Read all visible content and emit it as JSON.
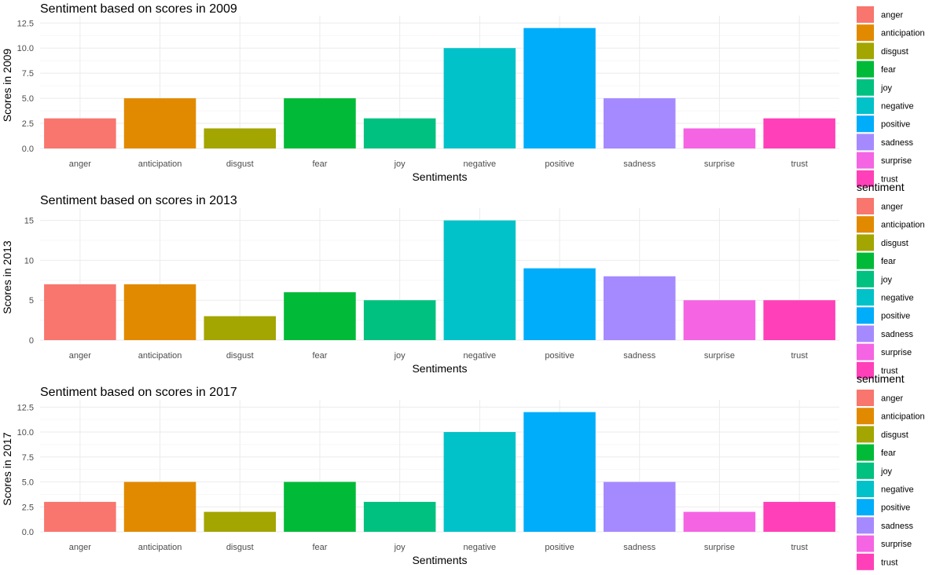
{
  "chart_data": [
    {
      "type": "bar",
      "title": "Sentiment based on scores in 2009",
      "xlabel": "Sentiments",
      "ylabel": "Scores in 2009",
      "categories": [
        "anger",
        "anticipation",
        "disgust",
        "fear",
        "joy",
        "negative",
        "positive",
        "sadness",
        "surprise",
        "trust"
      ],
      "values": [
        3,
        5,
        2,
        5,
        3,
        10,
        12,
        5,
        2,
        3
      ],
      "ylim": [
        0,
        12.6
      ],
      "yticks": [
        "0.0",
        "2.5",
        "5.0",
        "7.5",
        "10.0",
        "12.5"
      ],
      "grid": true,
      "legend": {
        "position": "right",
        "title": "",
        "entries": [
          "anger",
          "anticipation",
          "disgust",
          "fear",
          "joy",
          "negative",
          "positive",
          "sadness",
          "surprise",
          "trust"
        ]
      }
    },
    {
      "type": "bar",
      "title": "Sentiment based on scores in 2013",
      "xlabel": "Sentiments",
      "ylabel": "Scores in 2013",
      "categories": [
        "anger",
        "anticipation",
        "disgust",
        "fear",
        "joy",
        "negative",
        "positive",
        "sadness",
        "surprise",
        "trust"
      ],
      "values": [
        7,
        7,
        3,
        6,
        5,
        15,
        9,
        8,
        5,
        5
      ],
      "ylim": [
        0,
        15.75
      ],
      "yticks": [
        "0",
        "5",
        "10",
        "15"
      ],
      "grid": true,
      "legend": {
        "position": "right",
        "title": "sentiment",
        "entries": [
          "anger",
          "anticipation",
          "disgust",
          "fear",
          "joy",
          "negative",
          "positive",
          "sadness",
          "surprise",
          "trust"
        ]
      }
    },
    {
      "type": "bar",
      "title": "Sentiment based on scores in 2017",
      "xlabel": "Sentiments",
      "ylabel": "Scores in 2017",
      "categories": [
        "anger",
        "anticipation",
        "disgust",
        "fear",
        "joy",
        "negative",
        "positive",
        "sadness",
        "surprise",
        "trust"
      ],
      "values": [
        3,
        5,
        2,
        5,
        3,
        10,
        12,
        5,
        2,
        3
      ],
      "ylim": [
        0,
        12.6
      ],
      "yticks": [
        "0.0",
        "2.5",
        "5.0",
        "7.5",
        "10.0",
        "12.5"
      ],
      "grid": true,
      "legend": {
        "position": "right",
        "title": "sentiment",
        "entries": [
          "anger",
          "anticipation",
          "disgust",
          "fear",
          "joy",
          "negative",
          "positive",
          "sadness",
          "surprise",
          "trust"
        ]
      }
    }
  ],
  "colors": {
    "anger": "#F8766D",
    "anticipation": "#E18A00",
    "disgust": "#A3A500",
    "fear": "#00BA38",
    "joy": "#00C17F",
    "negative": "#00C2C8",
    "positive": "#00ADFA",
    "sadness": "#A58AFF",
    "surprise": "#F564E3",
    "trust": "#FF40B8"
  }
}
